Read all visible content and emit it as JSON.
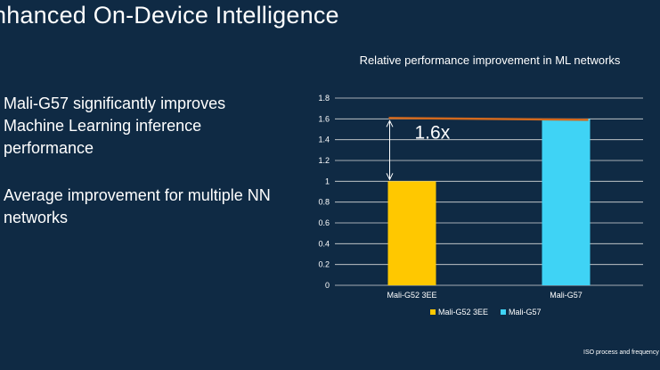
{
  "slide": {
    "title": "nhanced On-Device Intelligence",
    "bullets": [
      "Mali-G57 significantly improves Machine Learning inference performance",
      "Average improvement for multiple NN networks"
    ],
    "footnote": "ISO process and frequency"
  },
  "colors": {
    "background": "#0f2a44",
    "bar_g52": "#ffc800",
    "bar_g57": "#3fd3f5",
    "trend_line": "#d2691e",
    "gridline": "#d9d9d9"
  },
  "chart_data": {
    "type": "bar",
    "title": "Relative performance improvement in ML networks",
    "categories": [
      "Mali-G52 3EE",
      "Mali-G57"
    ],
    "values": [
      1.0,
      1.6
    ],
    "ylim": [
      0,
      1.8
    ],
    "yticks": [
      "0",
      "0.2",
      "0.4",
      "0.6",
      "0.8",
      "1",
      "1.2",
      "1.4",
      "1.6",
      "1.8"
    ],
    "grid": true,
    "legend": [
      "Mali-G52 3EE",
      "Mali-G57"
    ],
    "legend_position": "bottom-left",
    "annotation": "1.6x"
  }
}
